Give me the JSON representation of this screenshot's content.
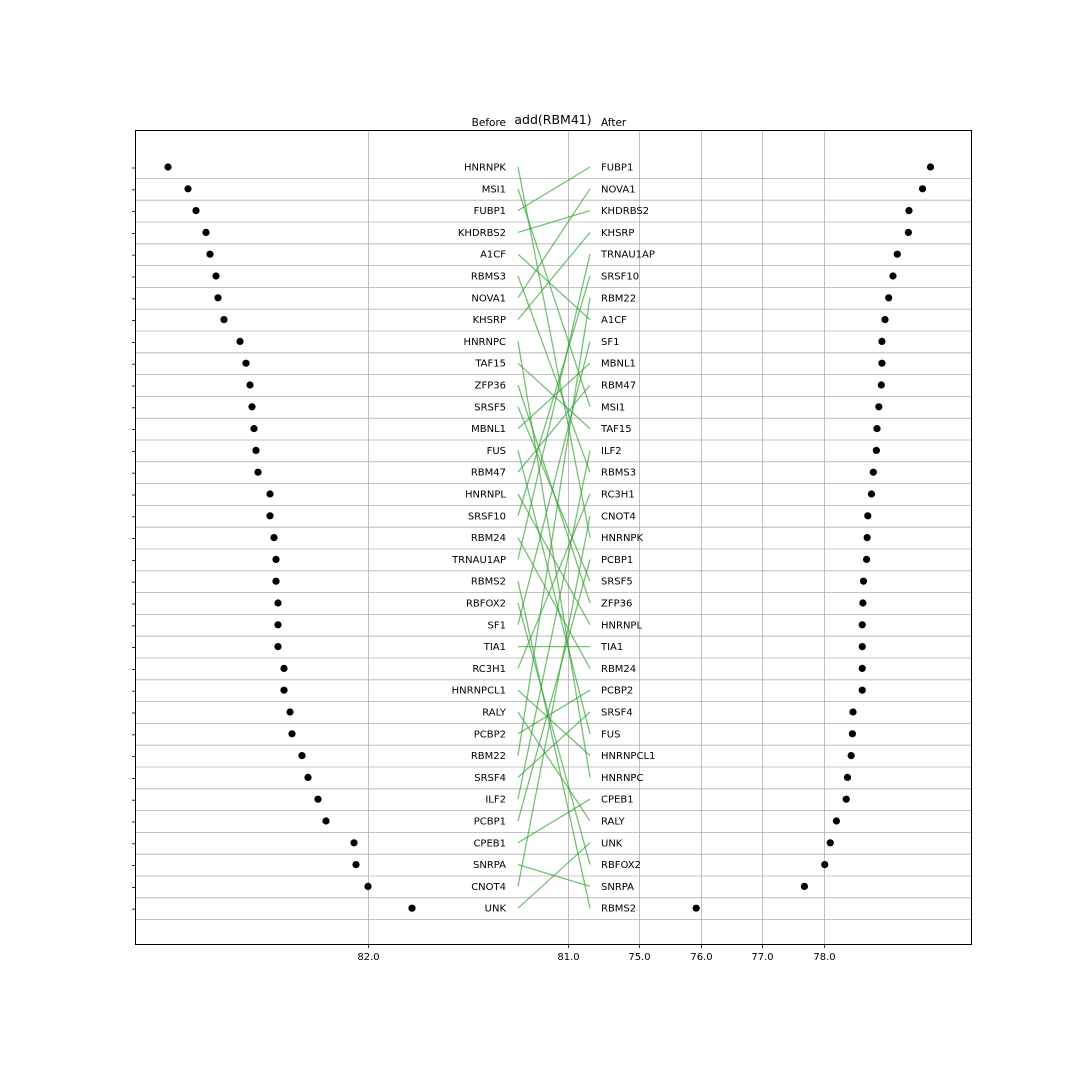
{
  "chart_data": {
    "type": "scatter",
    "title": "add(RBM41)",
    "before_header": "Before",
    "after_header": "After",
    "grid": true,
    "before": {
      "x_ticks": [
        "82.0",
        "81.0"
      ],
      "x_tick_values": [
        82.0,
        81.0
      ],
      "points": [
        {
          "label": "HNRNPK",
          "value": 83.0
        },
        {
          "label": "MSI1",
          "value": 82.9
        },
        {
          "label": "FUBP1",
          "value": 82.86
        },
        {
          "label": "KHDRBS2",
          "value": 82.81
        },
        {
          "label": "A1CF",
          "value": 82.79
        },
        {
          "label": "RBMS3",
          "value": 82.76
        },
        {
          "label": "NOVA1",
          "value": 82.75
        },
        {
          "label": "KHSRP",
          "value": 82.72
        },
        {
          "label": "HNRNPC",
          "value": 82.64
        },
        {
          "label": "TAF15",
          "value": 82.61
        },
        {
          "label": "ZFP36",
          "value": 82.59
        },
        {
          "label": "SRSF5",
          "value": 82.58
        },
        {
          "label": "MBNL1",
          "value": 82.57
        },
        {
          "label": "FUS",
          "value": 82.56
        },
        {
          "label": "RBM47",
          "value": 82.55
        },
        {
          "label": "HNRNPL",
          "value": 82.49
        },
        {
          "label": "SRSF10",
          "value": 82.49
        },
        {
          "label": "RBM24",
          "value": 82.47
        },
        {
          "label": "TRNAU1AP",
          "value": 82.46
        },
        {
          "label": "RBMS2",
          "value": 82.46
        },
        {
          "label": "RBFOX2",
          "value": 82.45
        },
        {
          "label": "SF1",
          "value": 82.45
        },
        {
          "label": "TIA1",
          "value": 82.45
        },
        {
          "label": "RC3H1",
          "value": 82.42
        },
        {
          "label": "HNRNPCL1",
          "value": 82.42
        },
        {
          "label": "RALY",
          "value": 82.39
        },
        {
          "label": "PCBP2",
          "value": 82.38
        },
        {
          "label": "RBM22",
          "value": 82.33
        },
        {
          "label": "SRSF4",
          "value": 82.3
        },
        {
          "label": "ILF2",
          "value": 82.25
        },
        {
          "label": "PCBP1",
          "value": 82.21
        },
        {
          "label": "CPEB1",
          "value": 82.07
        },
        {
          "label": "SNRPA",
          "value": 82.06
        },
        {
          "label": "CNOT4",
          "value": 82.0
        },
        {
          "label": "UNK",
          "value": 81.78
        }
      ]
    },
    "after": {
      "x_ticks": [
        "75.0",
        "76.0",
        "77.0",
        "78.0"
      ],
      "x_tick_values": [
        75.0,
        76.0,
        77.0,
        78.0
      ],
      "points": [
        {
          "label": "FUBP1",
          "value": 79.74
        },
        {
          "label": "NOVA1",
          "value": 79.61
        },
        {
          "label": "KHDRBS2",
          "value": 79.39
        },
        {
          "label": "KHSRP",
          "value": 79.38
        },
        {
          "label": "TRNAU1AP",
          "value": 79.2
        },
        {
          "label": "SRSF10",
          "value": 79.13
        },
        {
          "label": "RBM22",
          "value": 79.06
        },
        {
          "label": "A1CF",
          "value": 79.0
        },
        {
          "label": "SF1",
          "value": 78.95
        },
        {
          "label": "MBNL1",
          "value": 78.95
        },
        {
          "label": "RBM47",
          "value": 78.94
        },
        {
          "label": "MSI1",
          "value": 78.9
        },
        {
          "label": "TAF15",
          "value": 78.87
        },
        {
          "label": "ILF2",
          "value": 78.86
        },
        {
          "label": "RBMS3",
          "value": 78.81
        },
        {
          "label": "RC3H1",
          "value": 78.78
        },
        {
          "label": "CNOT4",
          "value": 78.72
        },
        {
          "label": "HNRNPK",
          "value": 78.71
        },
        {
          "label": "PCBP1",
          "value": 78.7
        },
        {
          "label": "SRSF5",
          "value": 78.65
        },
        {
          "label": "ZFP36",
          "value": 78.64
        },
        {
          "label": "HNRNPL",
          "value": 78.63
        },
        {
          "label": "TIA1",
          "value": 78.63
        },
        {
          "label": "RBM24",
          "value": 78.63
        },
        {
          "label": "PCBP2",
          "value": 78.63
        },
        {
          "label": "SRSF4",
          "value": 78.48
        },
        {
          "label": "FUS",
          "value": 78.47
        },
        {
          "label": "HNRNPCL1",
          "value": 78.45
        },
        {
          "label": "HNRNPC",
          "value": 78.39
        },
        {
          "label": "CPEB1",
          "value": 78.37
        },
        {
          "label": "RALY",
          "value": 78.21
        },
        {
          "label": "UNK",
          "value": 78.11
        },
        {
          "label": "RBFOX2",
          "value": 78.02
        },
        {
          "label": "SNRPA",
          "value": 77.69
        },
        {
          "label": "RBMS2",
          "value": 75.93
        }
      ]
    },
    "line_color": "#2ca02c",
    "marker_color": "#000000"
  }
}
